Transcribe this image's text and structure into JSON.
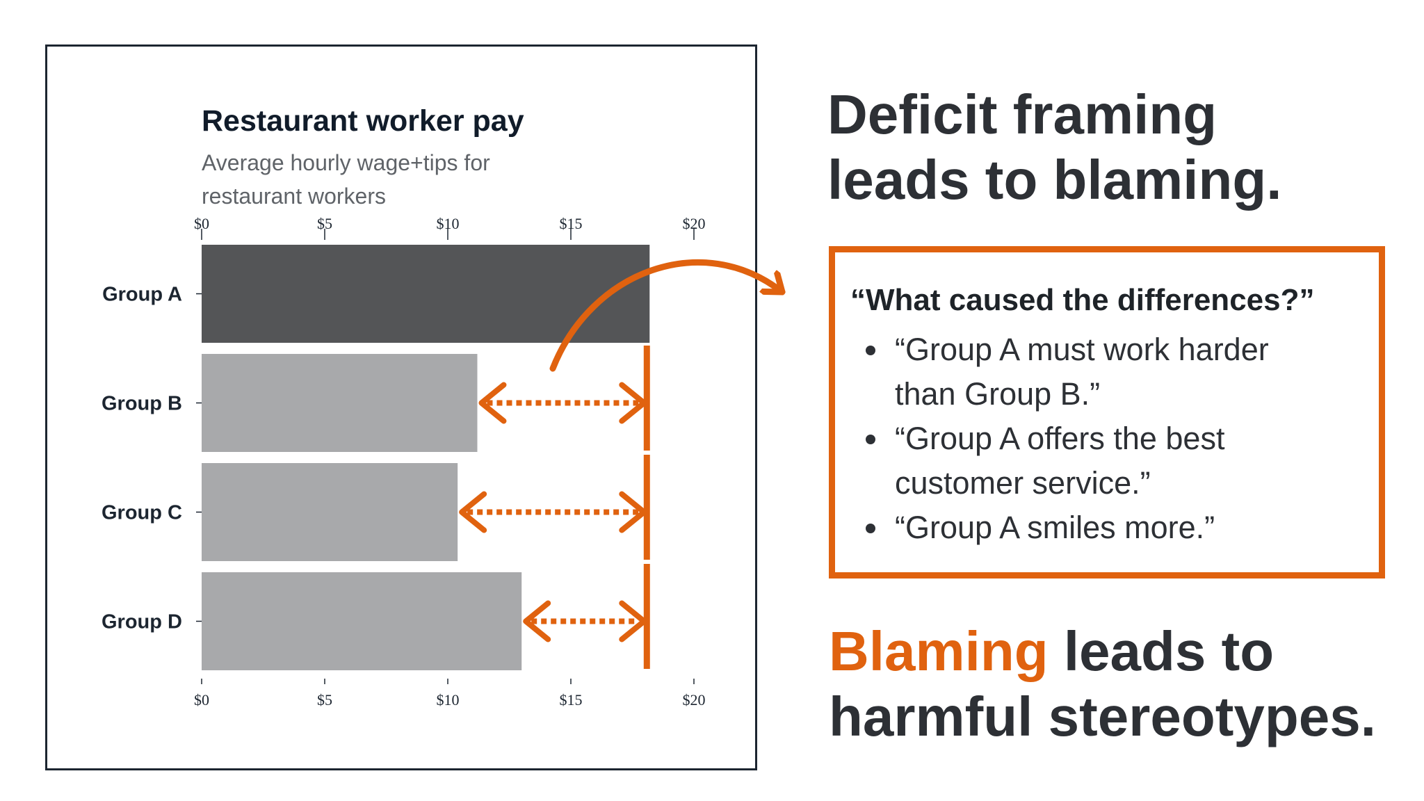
{
  "chart_data": {
    "type": "bar",
    "orientation": "horizontal",
    "title": "Restaurant worker pay",
    "subtitle": "Average hourly wage+tips for restaurant workers",
    "categories": [
      "Group A",
      "Group B",
      "Group C",
      "Group D"
    ],
    "values": [
      18.2,
      11.2,
      10.4,
      13.0
    ],
    "xlim": [
      0,
      20
    ],
    "xticks": [
      "$0",
      "$5",
      "$10",
      "$15",
      "$20"
    ],
    "xtick_values": [
      0,
      5,
      10,
      15,
      20
    ],
    "x_axis_position": "top and bottom",
    "grid": false,
    "legend": "none",
    "reference_value": 18.2,
    "colors": {
      "highlight_bar": "#545557",
      "other_bars": "#a8a9ab",
      "annotation": "#e0620f",
      "axis_text": "#1c2530"
    }
  },
  "headline": {
    "line1": "Deficit framing",
    "line2": "leads to blaming."
  },
  "callout": {
    "question": "“What caused the differences?”",
    "bullets": [
      {
        "line1": "“Group A must work harder",
        "line2": "than Group B.”"
      },
      {
        "line1": "“Group A offers the best",
        "line2": "customer service.”"
      },
      {
        "line1": "“Group A smiles more.”",
        "line2": ""
      }
    ],
    "border_color": "#e0620f"
  },
  "conclusion": {
    "accent_word": "Blaming",
    "rest_line1": " leads to",
    "line2": "harmful stereotypes.",
    "accent_color": "#e0620f"
  }
}
